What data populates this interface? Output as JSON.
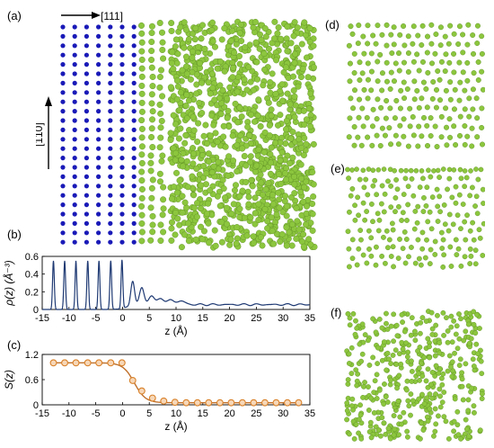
{
  "labels": {
    "a": "(a)",
    "b": "(b)",
    "c": "(c)",
    "d": "(d)",
    "e": "(e)",
    "f": "(f)"
  },
  "directions": {
    "horizontal": "[111]",
    "vertical": "[1̄10]"
  },
  "colors": {
    "solid_atoms": "#1a1ab8",
    "liquid_atoms": "#8cc63e",
    "density_line": "#1f3a73",
    "order_line": "#c0702a",
    "order_marker": "#d9822b"
  },
  "chart_data": [
    {
      "type": "line",
      "panel": "b",
      "ylabel": "ρ(z) (Å⁻³)",
      "xlabel": "z (Å)",
      "xlim": [
        -15,
        35
      ],
      "ylim": [
        0,
        0.6
      ],
      "xticks": [
        "-15",
        "-10",
        "-5",
        "0",
        "5",
        "10",
        "15",
        "20",
        "25",
        "30",
        "35"
      ],
      "yticks": [
        "0",
        "0.2",
        "0.4",
        "0.6"
      ],
      "series": [
        {
          "peaks_z": [
            -12.9,
            -10.8,
            -8.7,
            -6.5,
            -4.4,
            -2.2,
            -0.1,
            1.9,
            3.6,
            5.4,
            7.2,
            9.1,
            11.0
          ],
          "peaks_rho": [
            0.55,
            0.55,
            0.55,
            0.55,
            0.55,
            0.55,
            0.55,
            0.31,
            0.22,
            0.13,
            0.1,
            0.075,
            0.065
          ],
          "baseline": 0.055
        }
      ]
    },
    {
      "type": "line",
      "panel": "c",
      "ylabel": "S(z)",
      "xlabel": "z (Å)",
      "xlim": [
        -15,
        35
      ],
      "ylim": [
        0,
        1.2
      ],
      "xticks": [
        "-15",
        "-10",
        "-5",
        "0",
        "5",
        "10",
        "15",
        "20",
        "25",
        "30",
        "35"
      ],
      "yticks": [
        "0",
        "0.6",
        "1.2"
      ],
      "series": [
        {
          "x": [
            -12.9,
            -10.8,
            -8.7,
            -6.5,
            -4.4,
            -2.2,
            -0.1,
            1.9,
            3.6,
            5.6,
            7.7,
            9.8,
            11.9,
            14.0,
            16.1,
            18.2,
            20.3,
            22.4,
            24.5,
            26.6,
            28.7,
            30.8,
            32.9
          ],
          "y": [
            1.0,
            1.0,
            1.0,
            1.0,
            1.0,
            1.0,
            1.0,
            0.58,
            0.33,
            0.16,
            0.09,
            0.06,
            0.05,
            0.05,
            0.05,
            0.05,
            0.05,
            0.05,
            0.05,
            0.05,
            0.05,
            0.05,
            0.05
          ]
        }
      ]
    }
  ]
}
